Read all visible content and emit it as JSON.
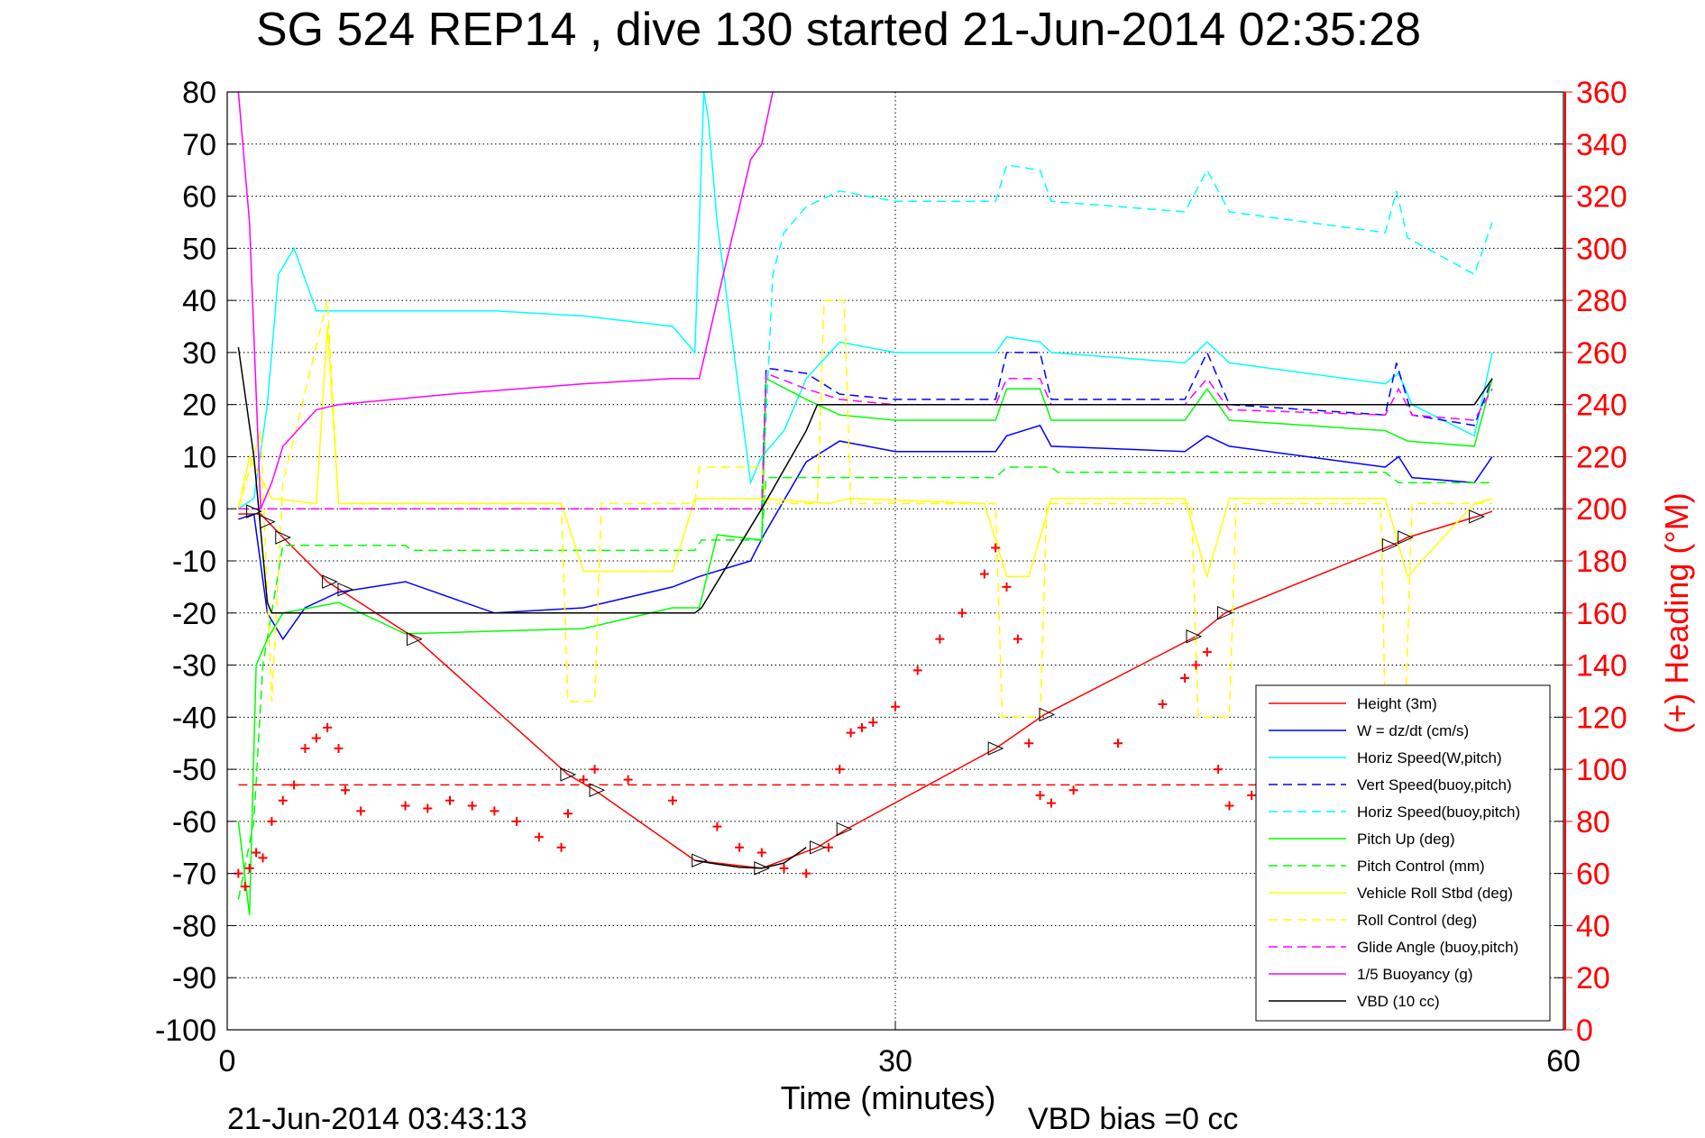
{
  "chart_data": {
    "type": "line",
    "title": "SG 524   REP14  , dive 130 started 21-Jun-2014 02:35:28",
    "xlabel": "Time (minutes)",
    "ylabel_right": "(+) Heading (°M)",
    "xlim": [
      0,
      60
    ],
    "ylim_left": [
      -100,
      80
    ],
    "ylim_right": [
      0,
      360
    ],
    "xticks": [
      "0",
      "30",
      "60"
    ],
    "yticks_left": [
      "80",
      "70",
      "60",
      "50",
      "40",
      "30",
      "20",
      "10",
      "0",
      "-10",
      "-20",
      "-30",
      "-40",
      "-50",
      "-60",
      "-70",
      "-80",
      "-90",
      "-100"
    ],
    "yticks_right": [
      "360",
      "340",
      "320",
      "300",
      "280",
      "260",
      "240",
      "220",
      "200",
      "180",
      "160",
      "140",
      "120",
      "100",
      "80",
      "60",
      "40",
      "20",
      "0"
    ],
    "grid": true,
    "legend_position": "lower-right",
    "footer_left": "21-Jun-2014 03:43:13",
    "footer_right": "VBD bias =0 cc",
    "colors": {
      "red": "#ff0000",
      "blue": "#0000ff",
      "cyan": "#00ffff",
      "green": "#00ff00",
      "yellow": "#ffff00",
      "magenta": "#ff00ff",
      "black": "#000000"
    },
    "series": [
      {
        "name": "Height (3m)",
        "color": "#ff0000",
        "style": "solid",
        "x": [
          0.5,
          1.5,
          2.5,
          4.5,
          8.5,
          15.3,
          16.5,
          21,
          24,
          26.5,
          27.8,
          34.5,
          36.7,
          43.5,
          44.8,
          52.3,
          53,
          56.1,
          56.8
        ],
        "y": [
          -1,
          -1,
          -5.5,
          -14,
          -25,
          -51,
          -54,
          -67.5,
          -69,
          -65,
          -61.5,
          -46,
          -39.5,
          -24.5,
          -20,
          -7,
          -5.5,
          -1.5,
          -0.5
        ]
      },
      {
        "name": "W = dz/dt (cm/s)",
        "color": "#0000ff",
        "style": "solid",
        "x": [
          0.5,
          1.2,
          1.8,
          2.5,
          3.5,
          5,
          8,
          12,
          16,
          20,
          21.2,
          23.5,
          24.1,
          26,
          27.5,
          30,
          34.5,
          35,
          36.5,
          37,
          43,
          44,
          45,
          52,
          52.6,
          53.2,
          56,
          56.8
        ],
        "y": [
          -2,
          -1,
          -20,
          -25,
          -19,
          -16,
          -14,
          -20,
          -19,
          -15,
          -13,
          -10,
          -5,
          9,
          13,
          11,
          11,
          14,
          16,
          12,
          11,
          14,
          12,
          8,
          10,
          6,
          5,
          10
        ]
      },
      {
        "name": "Horiz Speed(W,pitch)",
        "color": "#00ffff",
        "style": "solid",
        "x": [
          0.5,
          1.2,
          1.8,
          2.3,
          3,
          4,
          8,
          12,
          16,
          20,
          21,
          21.4,
          21.6,
          22,
          23.5,
          24,
          25,
          26,
          27.5,
          30,
          34.5,
          35,
          36.5,
          37,
          43,
          44,
          45,
          52,
          52.6,
          53.2,
          56,
          56.8
        ],
        "y": [
          0,
          2,
          20,
          45,
          50,
          38,
          38,
          38,
          37,
          35,
          30,
          80,
          75,
          55,
          5,
          10,
          15,
          25,
          32,
          30,
          30,
          33,
          32,
          30,
          28,
          32,
          28,
          24,
          26,
          20,
          14,
          30
        ]
      },
      {
        "name": "Vert Speed(buoy,pitch)",
        "color": "#0000ff",
        "style": "dashed",
        "x": [
          24,
          24.2,
          26,
          27.5,
          30,
          34.5,
          35,
          36.5,
          37,
          43,
          44,
          45,
          52,
          52.5,
          53.2,
          56,
          56.8
        ],
        "y": [
          0,
          27,
          26,
          22,
          21,
          21,
          30,
          30,
          21,
          21,
          30,
          20,
          18,
          28,
          18,
          16,
          25
        ]
      },
      {
        "name": "Horiz Speed(buoy,pitch)",
        "color": "#00ffff",
        "style": "dashed",
        "x": [
          24,
          24.5,
          25,
          26,
          27.5,
          30,
          34.5,
          35,
          36.5,
          37,
          43,
          44,
          45,
          52,
          52.5,
          53,
          56,
          56.8
        ],
        "y": [
          0,
          45,
          53,
          58,
          61,
          59,
          59,
          66,
          65,
          59,
          57,
          65,
          57,
          53,
          61,
          52,
          45,
          55
        ]
      },
      {
        "name": "Pitch Up (deg)",
        "color": "#00ff00",
        "style": "solid",
        "x": [
          0.5,
          1,
          1.3,
          1.8,
          2.5,
          5,
          8,
          16,
          20,
          21.2,
          22,
          24,
          24.2,
          26,
          27.5,
          30,
          34.5,
          35,
          36.5,
          37,
          43,
          44,
          45,
          52,
          53,
          56,
          56.8
        ],
        "y": [
          -60,
          -78,
          -30,
          -25,
          -20,
          -18,
          -24,
          -23,
          -19,
          -19,
          -5,
          -6,
          25,
          21,
          18,
          17,
          17,
          23,
          23,
          17,
          17,
          23,
          17,
          15,
          13,
          12,
          25
        ]
      },
      {
        "name": "Pitch Control (mm)",
        "color": "#00ff00",
        "style": "dashed",
        "x": [
          0.5,
          1.2,
          1.6,
          2.5,
          8,
          8.3,
          21,
          21.3,
          24,
          24.2,
          34.5,
          35,
          37,
          37.3,
          52,
          52.6,
          56,
          56.8
        ],
        "y": [
          -75,
          -60,
          -30,
          -7,
          -7,
          -8,
          -8,
          -6,
          -6,
          6,
          6,
          8,
          8,
          7,
          7,
          5,
          5,
          5
        ]
      },
      {
        "name": "Vehicle Roll Stbd (deg)",
        "color": "#ffff00",
        "style": "solid",
        "x": [
          0.5,
          1,
          2,
          4,
          4.5,
          5,
          15,
          16,
          20,
          21,
          22,
          24,
          27,
          28,
          34,
          35,
          36,
          37,
          43,
          44,
          45,
          52,
          53,
          56,
          56.8
        ],
        "y": [
          0,
          10,
          2,
          1,
          35,
          1,
          1,
          -12,
          -12,
          2,
          2,
          2,
          1,
          2,
          1,
          -13,
          -13,
          2,
          2,
          -13,
          2,
          2,
          -13,
          1,
          2
        ]
      },
      {
        "name": "Roll Control (deg)",
        "color": "#ffff00",
        "style": "dashed",
        "x": [
          0.5,
          1.5,
          2,
          2.5,
          4.5,
          5,
          15,
          15.3,
          16.5,
          16.8,
          21,
          21.2,
          24,
          24.2,
          26.5,
          26.8,
          27.7,
          28,
          34.5,
          34.8,
          36.5,
          36.8,
          43.3,
          43.6,
          45,
          45.3,
          51.8,
          52,
          52.9,
          53.2,
          56,
          56.8
        ],
        "y": [
          0,
          15,
          -37,
          5,
          40,
          1,
          1,
          -37,
          -37,
          1,
          1,
          8,
          8,
          1,
          1,
          40,
          40,
          1,
          1,
          -40,
          -40,
          1,
          1,
          -40,
          -40,
          1,
          1,
          -40,
          -40,
          1,
          1,
          1
        ]
      },
      {
        "name": "Glide Angle (buoy,pitch)",
        "color": "#ff00ff",
        "style": "dashed",
        "x": [
          0.5,
          24,
          24.2,
          26,
          27.5,
          30,
          34.5,
          35,
          36.5,
          37,
          43,
          44,
          45,
          52,
          52.6,
          53.2,
          56,
          56.8
        ],
        "y": [
          0,
          0,
          26,
          23,
          21,
          20,
          20,
          25,
          25,
          20,
          20,
          25,
          19,
          18,
          23,
          18,
          17,
          23
        ]
      },
      {
        "name": "1/5 Buoyancy (g)",
        "color": "#ff00ff",
        "style": "solid",
        "x": [
          0.5,
          1,
          1.5,
          2,
          2.5,
          4,
          5,
          10,
          16,
          20,
          21.2,
          22,
          23.5,
          24,
          24.5
        ],
        "y": [
          80,
          55,
          0,
          5,
          12,
          19,
          20,
          22,
          24,
          25,
          25,
          40,
          67,
          70,
          80
        ]
      },
      {
        "name": "VBD (10 cc)",
        "color": "#000000",
        "style": "solid",
        "x": [
          0.5,
          1.2,
          1.8,
          2,
          21,
          21.3,
          24,
          26,
          26.5,
          56,
          56.8
        ],
        "y": [
          31,
          10,
          -18,
          -20,
          -20,
          -19,
          0,
          15,
          20,
          20,
          25
        ]
      },
      {
        "name": "Heading (+)",
        "color": "#ff0000",
        "style": "markers",
        "axis": "right",
        "x": [
          0.5,
          0.8,
          1,
          1.3,
          1.6,
          2,
          2.5,
          3,
          3.5,
          4,
          4.5,
          5,
          5.3,
          6,
          8,
          9,
          10,
          11,
          12,
          13,
          14,
          15,
          15.3,
          16,
          16.5,
          18,
          20,
          22,
          23,
          24,
          25,
          26,
          27,
          27.5,
          28,
          28.5,
          29,
          30,
          31,
          32,
          33,
          34,
          34.5,
          35,
          35.5,
          36,
          36.5,
          37,
          38,
          40,
          42,
          43,
          43.5,
          44,
          44.5,
          45,
          46,
          48,
          50,
          52,
          52.5,
          53,
          53.5
        ],
        "y": [
          60,
          55,
          62,
          68,
          66,
          80,
          88,
          94,
          108,
          112,
          116,
          108,
          92,
          84,
          86,
          85,
          88,
          86,
          84,
          80,
          74,
          70,
          83,
          96,
          100,
          96,
          88,
          78,
          70,
          68,
          62,
          60,
          70,
          100,
          114,
          116,
          118,
          124,
          138,
          150,
          160,
          175,
          185,
          170,
          150,
          110,
          90,
          87,
          92,
          110,
          125,
          135,
          140,
          145,
          100,
          86,
          90,
          95,
          100,
          105,
          108,
          110,
          95
        ]
      },
      {
        "name": "",
        "color": "#ff0000",
        "style": "dashed",
        "axis": "right",
        "x": [
          0.5,
          56.8
        ],
        "y": [
          94,
          94
        ]
      },
      {
        "name": "",
        "color": "#000000",
        "style": "solid",
        "axis": "left",
        "x": [
          21,
          22,
          23,
          24,
          25,
          26
        ],
        "y": [
          -67.5,
          -68.2,
          -68.8,
          -69,
          -68,
          -65
        ]
      }
    ],
    "markers": [
      {
        "x": 1.2,
        "y": -0.5
      },
      {
        "x": 1.8,
        "y": -2.5
      },
      {
        "x": 2.5,
        "y": -5.5
      },
      {
        "x": 4.6,
        "y": -14
      },
      {
        "x": 5.3,
        "y": -15.5
      },
      {
        "x": 8.4,
        "y": -25
      },
      {
        "x": 15.3,
        "y": -51
      },
      {
        "x": 16.6,
        "y": -54
      },
      {
        "x": 21.2,
        "y": -67.5
      },
      {
        "x": 24,
        "y": -69
      },
      {
        "x": 26.5,
        "y": -65
      },
      {
        "x": 27.7,
        "y": -61.5
      },
      {
        "x": 34.5,
        "y": -46
      },
      {
        "x": 36.8,
        "y": -39.5
      },
      {
        "x": 43.4,
        "y": -24.5
      },
      {
        "x": 44.8,
        "y": -20
      },
      {
        "x": 52.2,
        "y": -7
      },
      {
        "x": 52.9,
        "y": -5.5
      },
      {
        "x": 56.1,
        "y": -1.5
      }
    ]
  }
}
